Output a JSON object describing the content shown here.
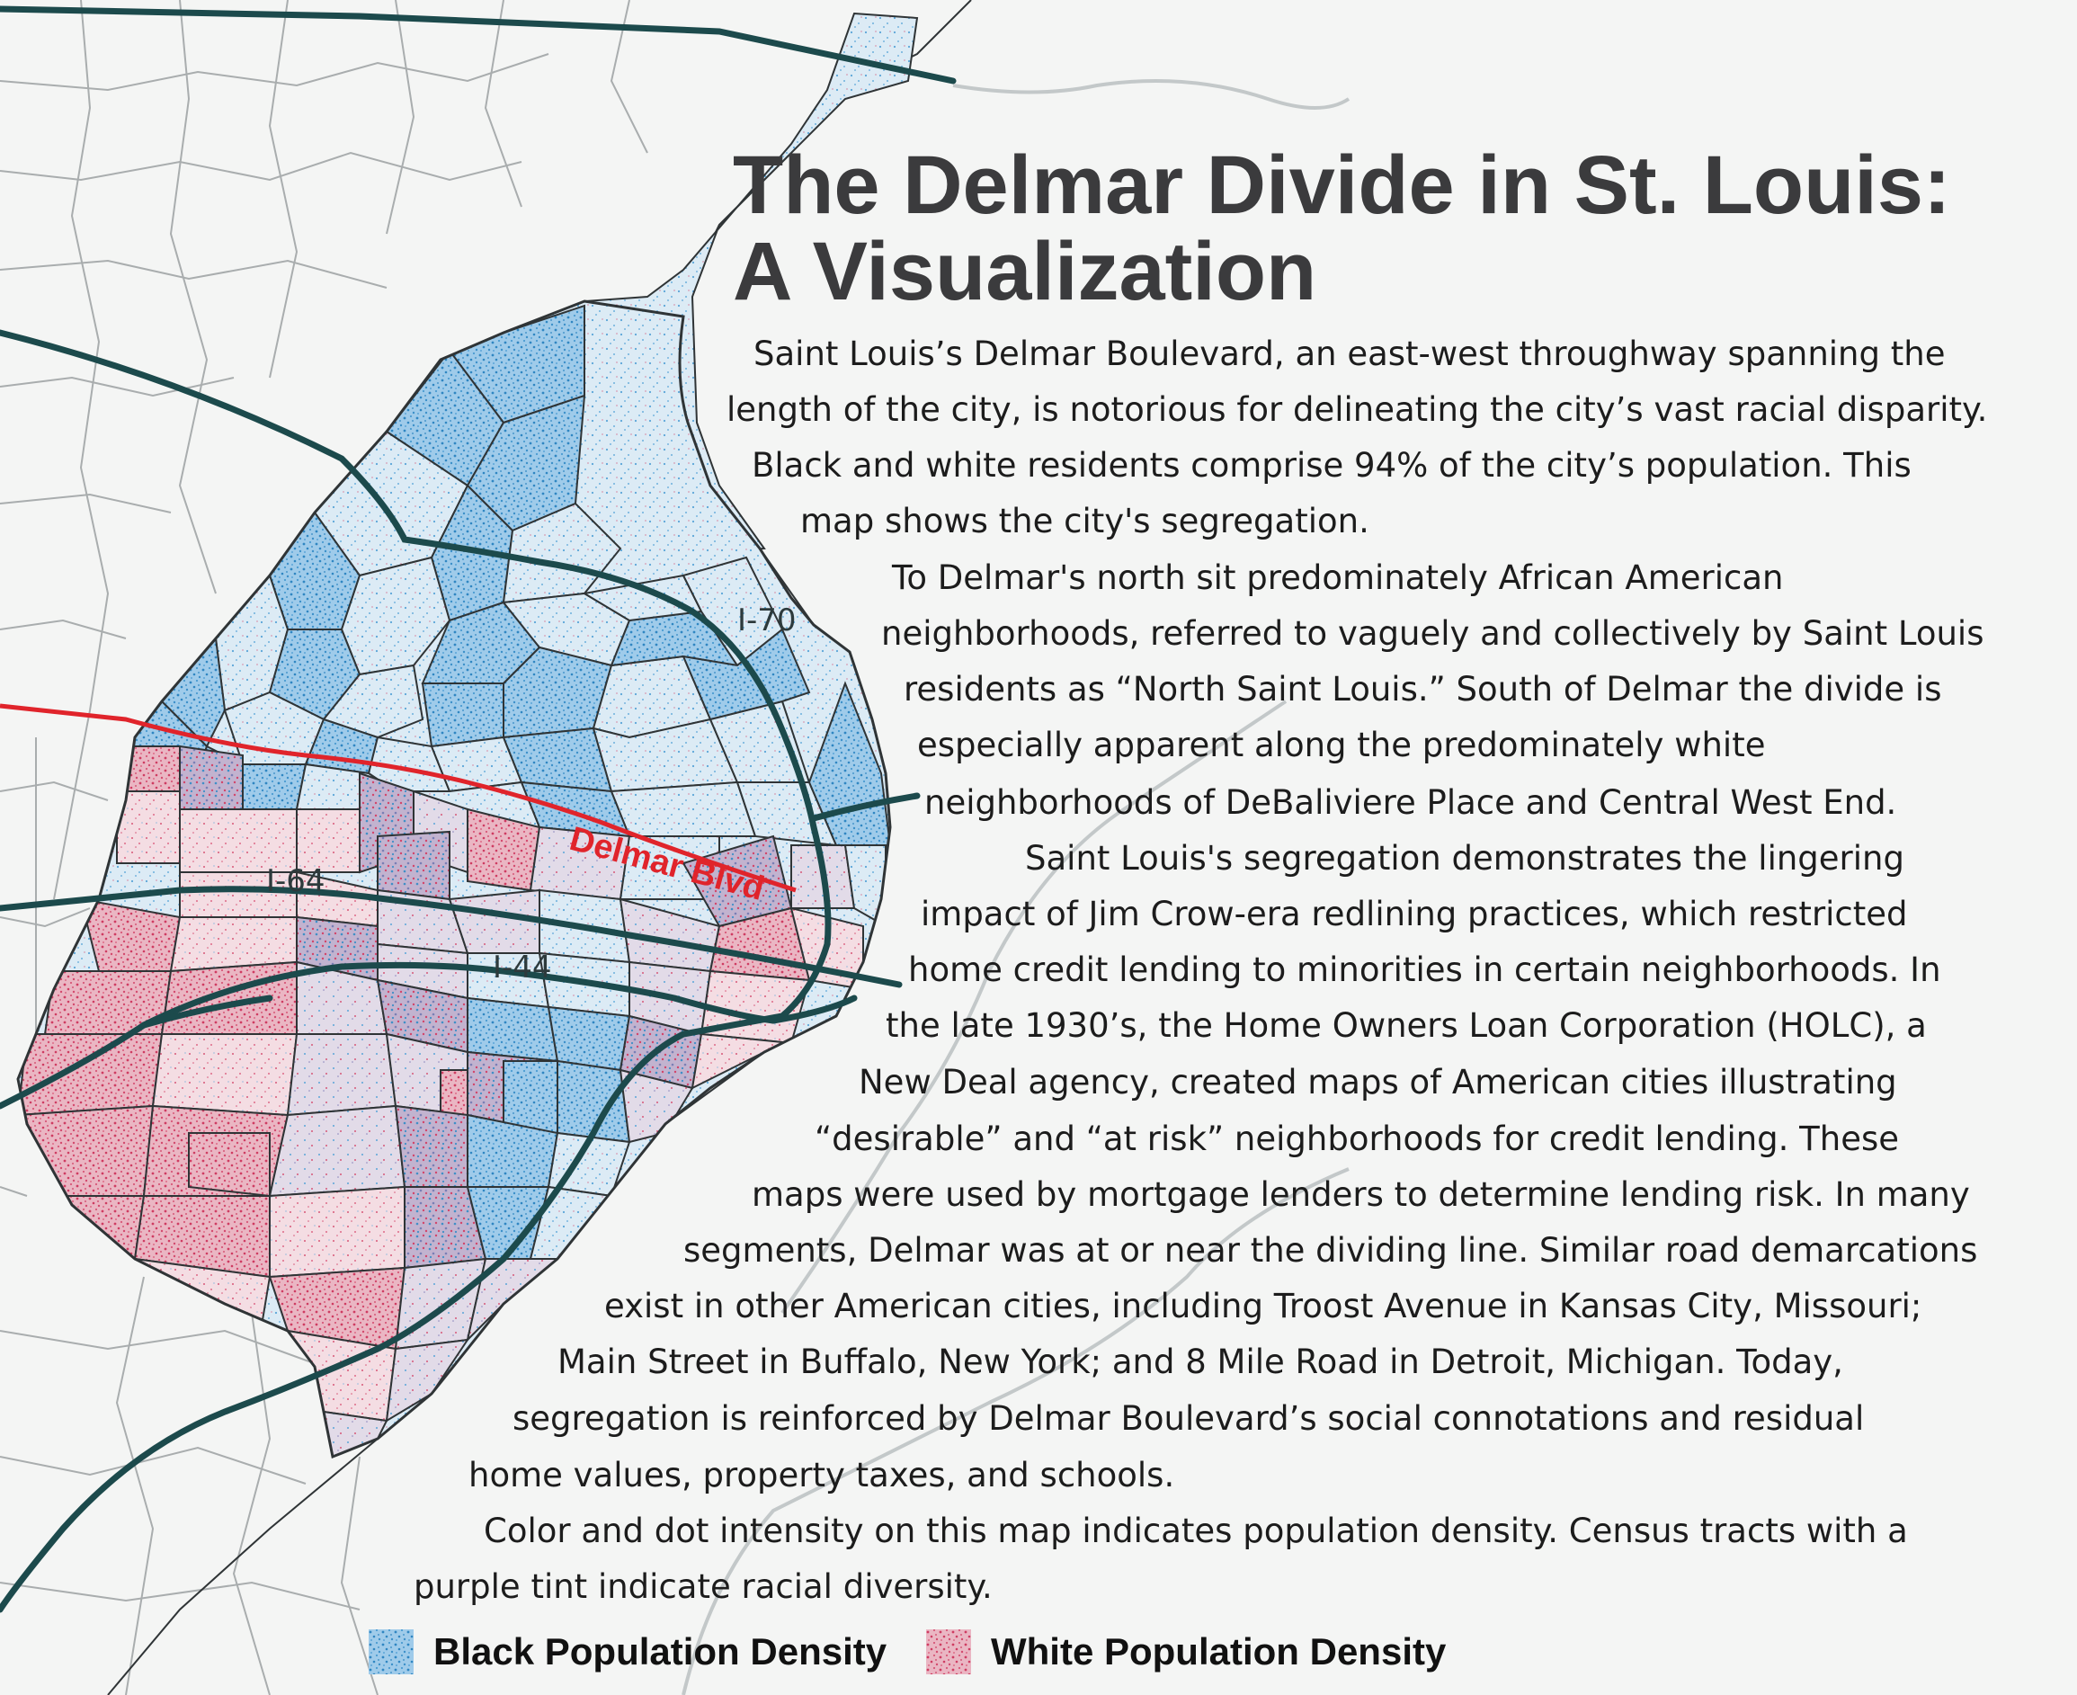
{
  "title": {
    "line1": "The Delmar Divide in St. Louis:",
    "line2": "A Visualization"
  },
  "body_lines": [
    "Saint Louis’s Delmar Boulevard, an east-west throughway spanning the",
    "length of the city, is notorious for delineating the city’s vast racial disparity.",
    "Black and white residents comprise 94% of the city’s population. This",
    "map shows the city's segregation.",
    "To Delmar's north sit predominately African American",
    "neighborhoods, referred to vaguely and collectively by Saint Louis",
    "residents as “North Saint Louis.”  South of Delmar the divide is",
    "especially apparent along the predominately white",
    "neighborhoods of DeBaliviere Place and Central West End.",
    "Saint Louis's segregation demonstrates the lingering",
    "impact of Jim Crow-era redlining practices, which restricted",
    "home credit lending to minorities in certain neighborhoods. In",
    "the late 1930’s, the Home Owners Loan Corporation (HOLC), a",
    "New Deal agency, created maps of American cities illustrating",
    "“desirable” and “at risk” neighborhoods for credit lending. These",
    "maps were used by mortgage lenders to determine lending risk. In many",
    "segments, Delmar was at or near the dividing line. Similar road demarcations",
    "exist in other American cities, including Troost Avenue in Kansas City, Missouri;",
    "Main Street in Buffalo, New York; and 8 Mile Road in Detroit, Michigan. Today,",
    "segregation is reinforced by Delmar Boulevard’s social connotations and residual",
    "home values, property taxes, and schools.",
    "Color and dot intensity on this map indicates population density. Census tracts with a",
    "purple tint indicate racial diversity."
  ],
  "map_labels": {
    "delmar": "Delmar Blvd",
    "i70": "I-70",
    "i64": "I-64",
    "i44": "I-44"
  },
  "legend": {
    "black": {
      "label": "Black Population Density",
      "color": "#3f93c9"
    },
    "white": {
      "label": "White Population Density",
      "color": "#d2456a"
    }
  },
  "colors": {
    "background": "#f4f5f4",
    "highway": "#1c4a4c",
    "delmar": "#e0242b",
    "river": "#c3c8c9"
  }
}
